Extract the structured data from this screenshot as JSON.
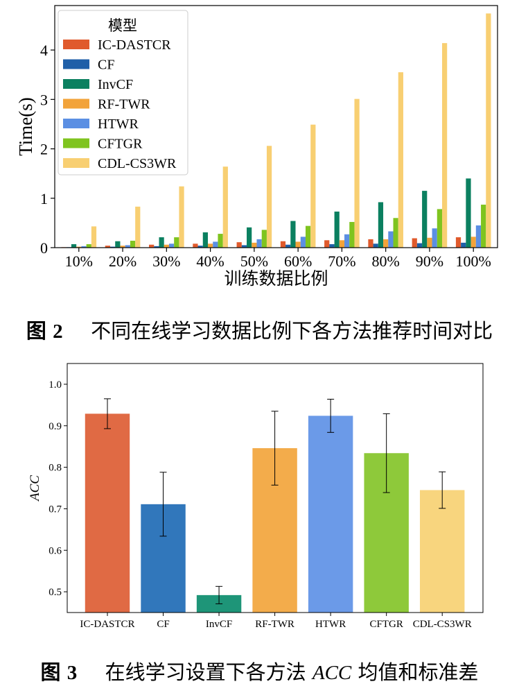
{
  "figure2": {
    "caption_prefix": "图",
    "caption_number": "2",
    "caption_text": "不同在线学习数据比例下各方法推荐时间对比",
    "chart_data": {
      "type": "bar",
      "xlabel": "训练数据比例",
      "ylabel": "Time(s)",
      "ylim": [
        0,
        4.9
      ],
      "yticks": [
        "0",
        "1",
        "2",
        "3",
        "4"
      ],
      "legend_title": "模型",
      "legend_position": "top-left",
      "categories": [
        "10%",
        "20%",
        "30%",
        "40%",
        "50%",
        "60%",
        "70%",
        "80%",
        "90%",
        "100%"
      ],
      "series": [
        {
          "name": "IC-DASTCR",
          "color": "#e05a2c",
          "values": [
            0.01,
            0.04,
            0.06,
            0.08,
            0.11,
            0.13,
            0.15,
            0.17,
            0.19,
            0.21
          ]
        },
        {
          "name": "CF",
          "color": "#1f5fa8",
          "values": [
            0.01,
            0.02,
            0.03,
            0.04,
            0.05,
            0.06,
            0.07,
            0.08,
            0.09,
            0.1
          ]
        },
        {
          "name": "InvCF",
          "color": "#0b8060",
          "values": [
            0.07,
            0.13,
            0.21,
            0.31,
            0.41,
            0.54,
            0.73,
            0.92,
            1.15,
            1.4
          ]
        },
        {
          "name": "RF-TWR",
          "color": "#f2a33a",
          "values": [
            0.02,
            0.04,
            0.06,
            0.08,
            0.1,
            0.12,
            0.15,
            0.17,
            0.2,
            0.22
          ]
        },
        {
          "name": "HTWR",
          "color": "#5b8fe3",
          "values": [
            0.03,
            0.05,
            0.08,
            0.12,
            0.17,
            0.22,
            0.27,
            0.33,
            0.39,
            0.45
          ]
        },
        {
          "name": "CFTGR",
          "color": "#7fc41f",
          "values": [
            0.07,
            0.14,
            0.21,
            0.28,
            0.36,
            0.44,
            0.52,
            0.6,
            0.78,
            0.87
          ]
        },
        {
          "name": "CDL-CS3WR",
          "color": "#f8cf72",
          "values": [
            0.43,
            0.83,
            1.24,
            1.64,
            2.06,
            2.49,
            3.01,
            3.55,
            4.14,
            4.74
          ]
        }
      ]
    }
  },
  "figure3": {
    "caption_prefix": "图",
    "caption_number": "3",
    "caption_text_before": "在线学习设置下各方法",
    "caption_italic": "ACC",
    "caption_text_after": "均值和标准差",
    "chart_data": {
      "type": "bar",
      "xlabel": "",
      "ylabel": "ACC",
      "ylim": [
        0.45,
        1.05
      ],
      "yticks": [
        "0.5",
        "0.6",
        "0.7",
        "0.8",
        "0.9",
        "1.0"
      ],
      "categories": [
        "IC-DASTCR",
        "CF",
        "InvCF",
        "RF-TWR",
        "HTWR",
        "CFTGR",
        "CDL-CS3WR"
      ],
      "colors": [
        "#e06a44",
        "#3177bb",
        "#1e9578",
        "#f3ac4b",
        "#6b9ae8",
        "#8ec93a",
        "#f8d57e"
      ],
      "values": [
        0.929,
        0.711,
        0.492,
        0.846,
        0.924,
        0.834,
        0.745
      ],
      "errors": [
        0.036,
        0.077,
        0.021,
        0.089,
        0.04,
        0.095,
        0.044
      ]
    }
  }
}
